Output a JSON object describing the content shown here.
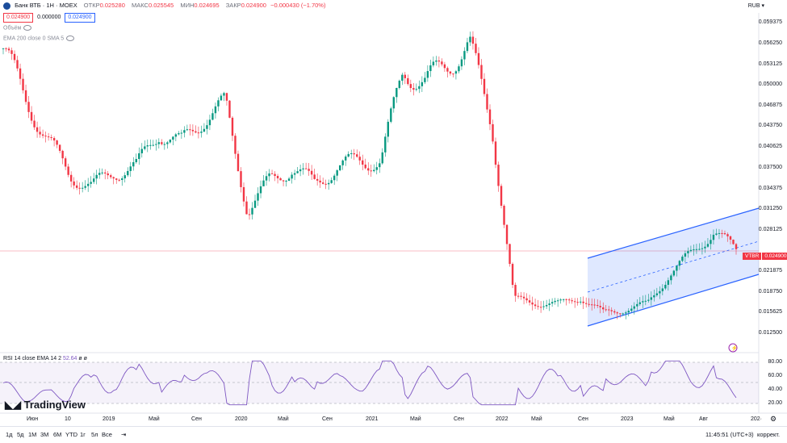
{
  "header": {
    "title": "Банк ВТБ · 1Н · MOEX",
    "o_label": "ОТКР",
    "o_value": "0.025280",
    "h_label": "МАКС",
    "h_value": "0.025545",
    "l_label": "МИН",
    "l_value": "0.024695",
    "c_label": "ЗАКР",
    "c_value": "0.024900",
    "change": "−0.000430 (−1.70%)",
    "sell_price": "0.024900",
    "spread": "0.000000",
    "buy_price": "0.024900",
    "currency": "RUB"
  },
  "indicators": {
    "volume_label": "Объём",
    "ema_label": "EMA 200 close 0 SMA 5",
    "rsi_label": "RSI 14 close EMA 14 2",
    "rsi_value": "52.64",
    "rsi_extra": "ø ø"
  },
  "price_axis": {
    "ticks": [
      "0.059375",
      "0.056250",
      "0.053125",
      "0.050000",
      "0.046875",
      "0.043750",
      "0.040625",
      "0.037500",
      "0.034375",
      "0.031250",
      "0.028125",
      "0.021875",
      "0.018750",
      "0.015625",
      "0.012500"
    ],
    "current_symbol": "VTBR",
    "current_price": "0.024900"
  },
  "rsi_axis": {
    "ticks": [
      "80.00",
      "60.00",
      "40.00",
      "20.00"
    ]
  },
  "time_axis": {
    "ticks": [
      "Июн",
      "10",
      "2019",
      "Май",
      "Сен",
      "2020",
      "Май",
      "Сен",
      "2021",
      "Май",
      "Сен",
      "2022",
      "Май",
      "Сен",
      "2023",
      "Май",
      "Авг",
      "202·"
    ]
  },
  "timeframes": [
    "1д",
    "5д",
    "1М",
    "3М",
    "6М",
    "YTD",
    "1г",
    "5л",
    "Все"
  ],
  "footer": {
    "time": "11:45:51 (UTC+3)",
    "mode": "коррект."
  },
  "brand": "TradingView",
  "colors": {
    "up": "#089981",
    "down": "#f23645",
    "channel": "#2962ff",
    "rsi": "#7e57c2"
  },
  "chart_data": {
    "type": "candlestick",
    "series": [
      {
        "name": "VTBR",
        "x": [
          "2018-05",
          "2018-07",
          "2018-09",
          "2018-11",
          "2019-01",
          "2019-03",
          "2019-05",
          "2019-07",
          "2019-09",
          "2019-11",
          "2020-01",
          "2020-03",
          "2020-05",
          "2020-07",
          "2020-09",
          "2020-11",
          "2021-01",
          "2021-03",
          "2021-05",
          "2021-07",
          "2021-09",
          "2021-11",
          "2022-01",
          "2022-03",
          "2022-05",
          "2022-07",
          "2022-09",
          "2022-11",
          "2023-01",
          "2023-03",
          "2023-05",
          "2023-07",
          "2023-08",
          "2023-09"
        ],
        "close": [
          0.0555,
          0.048,
          0.0415,
          0.0365,
          0.0345,
          0.037,
          0.0375,
          0.043,
          0.041,
          0.045,
          0.047,
          0.031,
          0.0355,
          0.0375,
          0.035,
          0.0375,
          0.0385,
          0.0385,
          0.052,
          0.0505,
          0.053,
          0.056,
          0.044,
          0.0175,
          0.0172,
          0.0168,
          0.018,
          0.0155,
          0.0162,
          0.0168,
          0.0215,
          0.0245,
          0.028,
          0.0249
        ]
      }
    ],
    "ylim": [
      0.0115,
      0.0605
    ]
  }
}
